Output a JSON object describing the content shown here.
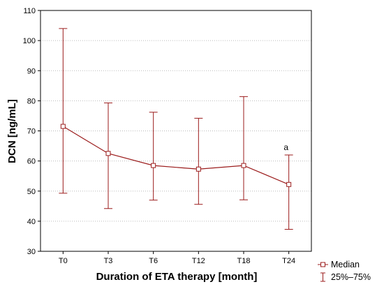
{
  "chart_data": {
    "type": "line",
    "title": "",
    "xlabel": "Duration of ETA therapy [month]",
    "ylabel": "DCN [ng/mL]",
    "ylim": [
      30,
      110
    ],
    "yticks": [
      30,
      40,
      50,
      60,
      70,
      80,
      90,
      100,
      110
    ],
    "categories": [
      "T0",
      "T3",
      "T6",
      "T12",
      "T18",
      "T24"
    ],
    "series": [
      {
        "name": "Median",
        "values": [
          71.5,
          62.5,
          58.5,
          57.3,
          58.5,
          52.2
        ],
        "q25": [
          49.3,
          44.2,
          47.0,
          45.6,
          47.1,
          37.3
        ],
        "q75": [
          104.0,
          79.3,
          76.2,
          74.2,
          81.4,
          62.0
        ],
        "error_name": "25%–75%"
      }
    ],
    "annotations": [
      {
        "category": "T24",
        "text": "a"
      }
    ],
    "grid": "horizontal dotted",
    "legend_position": "bottom-right",
    "colors": {
      "series": "#9b1b1b",
      "grid": "#bbbbbb",
      "frame": "#000000"
    }
  }
}
